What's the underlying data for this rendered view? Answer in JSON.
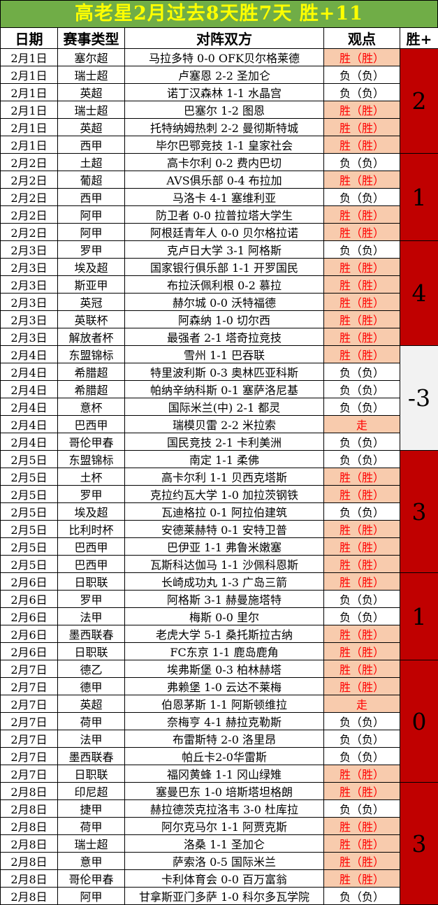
{
  "title": "高老星2月过去8天胜7天 胜+11",
  "columns": [
    "日期",
    "赛事类型",
    "对阵双方",
    "观点",
    "胜+"
  ],
  "colors": {
    "title_bg": "#70AD47",
    "title_text": "#FFFF00",
    "highlight_bg": "#F8CBAD",
    "highlight_text": "#FF0000",
    "score_red_bg": "#C00000",
    "score_gray_bg": "#F2F2F2"
  },
  "groups": [
    {
      "date": "2月1日",
      "score": "2",
      "score_style": "red",
      "rows": [
        {
          "league": "塞尔超",
          "match": "马拉多特 0-0 OFK贝尔格莱德",
          "opinion": "胜（胜）",
          "hl": true
        },
        {
          "league": "瑞士超",
          "match": "卢塞恩 2-2 圣加仑",
          "opinion": "负（负）",
          "hl": false
        },
        {
          "league": "英超",
          "match": "诺丁汉森林 1-1 水晶宫",
          "opinion": "负（负）",
          "hl": false
        },
        {
          "league": "瑞士超",
          "match": "巴塞尔 1-2 图恩",
          "opinion": "胜（胜）",
          "hl": true
        },
        {
          "league": "英超",
          "match": "托特纳姆热刺 2-2 曼彻斯特城",
          "opinion": "胜（胜）",
          "hl": true
        },
        {
          "league": "西甲",
          "match": "毕尔巴鄂竞技 1-1 皇家社会",
          "opinion": "胜（胜）",
          "hl": true
        }
      ]
    },
    {
      "date": "2月2日",
      "score": "1",
      "score_style": "red",
      "rows": [
        {
          "league": "土超",
          "match": "高卡尔利 0-2 费内巴切",
          "opinion": "负（负）",
          "hl": false
        },
        {
          "league": "葡超",
          "match": "AVS俱乐部 0-4 布拉加",
          "opinion": "胜（胜）",
          "hl": true
        },
        {
          "league": "西甲",
          "match": "马洛卡 4-1 塞维利亚",
          "opinion": "负（负）",
          "hl": false
        },
        {
          "league": "阿甲",
          "match": "防卫者 0-0 拉普拉塔大学生",
          "opinion": "胜（胜）",
          "hl": true
        },
        {
          "league": "阿甲",
          "match": "阿根廷青年人 0-0 贝尔格拉诺",
          "opinion": "胜（胜）",
          "hl": true
        }
      ]
    },
    {
      "date": "2月3日",
      "score": "4",
      "score_style": "red",
      "rows": [
        {
          "league": "罗甲",
          "match": "克卢日大学 3-1 阿格斯",
          "opinion": "负（负）",
          "hl": false
        },
        {
          "league": "埃及超",
          "match": "国家银行俱乐部 1-1 开罗国民",
          "opinion": "胜（胜）",
          "hl": true
        },
        {
          "league": "斯亚甲",
          "match": "布拉沃佩利根 0-2 慕拉",
          "opinion": "胜（胜）",
          "hl": true
        },
        {
          "league": "英冠",
          "match": "赫尔城 0-0 沃特福德",
          "opinion": "胜（胜）",
          "hl": true
        },
        {
          "league": "英联杯",
          "match": "阿森纳 1-0 切尔西",
          "opinion": "胜（胜）",
          "hl": true
        },
        {
          "league": "解放者杯",
          "match": "最强者 2-1 塔奇拉竞技",
          "opinion": "胜（胜）",
          "hl": true
        }
      ]
    },
    {
      "date": "2月4日",
      "score": "-3",
      "score_style": "gray",
      "rows": [
        {
          "league": "东盟锦标",
          "match": "雪州 1-1 巴吞联",
          "opinion": "胜（胜）",
          "hl": true
        },
        {
          "league": "希腊超",
          "match": "特里波利斯 0-3 奥林匹亚科斯",
          "opinion": "负（负）",
          "hl": false
        },
        {
          "league": "希腊超",
          "match": "帕纳辛纳科斯 0-1 塞萨洛尼基",
          "opinion": "负（负）",
          "hl": false
        },
        {
          "league": "意杯",
          "match": "国际米兰(中) 2-1 都灵",
          "opinion": "负（负）",
          "hl": false
        },
        {
          "league": "巴西甲",
          "match": "瑞模贝雷 2-2 米拉索",
          "opinion": "走",
          "hl": true
        },
        {
          "league": "哥伦甲春",
          "match": "国民竞技 2-1 卡利美洲",
          "opinion": "负（负）",
          "hl": false
        }
      ]
    },
    {
      "date": "2月5日",
      "score": "3",
      "score_style": "red",
      "rows": [
        {
          "league": "东盟锦标",
          "match": "南定 1-1 柔佛",
          "opinion": "负（负）",
          "hl": false
        },
        {
          "league": "土杯",
          "match": "高卡尔利 1-1 贝西克塔斯",
          "opinion": "胜（胜）",
          "hl": true
        },
        {
          "league": "罗甲",
          "match": "克拉约瓦大学 1-0 加拉茨钢铁",
          "opinion": "胜（胜）",
          "hl": true
        },
        {
          "league": "埃及超",
          "match": "瓦迪格拉 0-1 阿拉伯建筑",
          "opinion": "负（负）",
          "hl": false
        },
        {
          "league": "比利时杯",
          "match": "安德莱赫特 0-1 安特卫普",
          "opinion": "胜（胜）",
          "hl": true
        },
        {
          "league": "巴西甲",
          "match": "巴伊亚 1-1 弗鲁米嫩塞",
          "opinion": "胜（胜）",
          "hl": true
        },
        {
          "league": "巴西甲",
          "match": "瓦斯科达伽马 1-1 沙佩科恩斯",
          "opinion": "胜（胜）",
          "hl": true
        }
      ]
    },
    {
      "date": "2月6日",
      "score": "1",
      "score_style": "red",
      "rows": [
        {
          "league": "日职联",
          "match": "长崎成功丸 1-3 广岛三箭",
          "opinion": "胜（胜）",
          "hl": true
        },
        {
          "league": "罗甲",
          "match": "阿格斯 3-1 赫曼施塔特",
          "opinion": "负（负）",
          "hl": false
        },
        {
          "league": "法甲",
          "match": "梅斯 0-0 里尔",
          "opinion": "负（负）",
          "hl": false
        },
        {
          "league": "墨西联春",
          "match": "老虎大学 5-1 桑托斯拉古纳",
          "opinion": "胜（胜）",
          "hl": true
        },
        {
          "league": "日职联",
          "match": "FC东京 1-1 鹿岛鹿角",
          "opinion": "胜（胜）",
          "hl": true
        }
      ]
    },
    {
      "date": "2月7日",
      "score": "0",
      "score_style": "red",
      "rows": [
        {
          "league": "德乙",
          "match": "埃弗斯堡 0-3 柏林赫塔",
          "opinion": "胜（胜）",
          "hl": true
        },
        {
          "league": "德甲",
          "match": "弗赖堡 1-0 云达不莱梅",
          "opinion": "胜（胜）",
          "hl": true
        },
        {
          "league": "英超",
          "match": "伯恩茅斯 1-1 阿斯顿维拉",
          "opinion": "走",
          "hl": true
        },
        {
          "league": "荷甲",
          "match": "奈梅亨 4-1 赫拉克勒斯",
          "opinion": "负（负）",
          "hl": false
        },
        {
          "league": "法甲",
          "match": "布雷斯特 2-0 洛里昂",
          "opinion": "负（负）",
          "hl": false
        },
        {
          "league": "墨西联春",
          "match": "帕丘卡2-0华雷斯",
          "opinion": "负（负）",
          "hl": false
        },
        {
          "league": "日职联",
          "match": "福冈黄蜂 1-1 冈山绿雉",
          "opinion": "胜（胜）",
          "hl": true
        }
      ]
    },
    {
      "date": "2月8日",
      "score": "3",
      "score_style": "red",
      "rows": [
        {
          "league": "印尼超",
          "match": "塞曼巴东 1-0 培斯塔坦格朗",
          "opinion": "胜（胜）",
          "hl": true
        },
        {
          "league": "捷甲",
          "match": "赫拉德茨克拉洛韦 3-0 杜库拉",
          "opinion": "负（负）",
          "hl": false
        },
        {
          "league": "荷甲",
          "match": "阿尔克马尔 1-1 阿贾克斯",
          "opinion": "胜（胜）",
          "hl": true
        },
        {
          "league": "瑞士超",
          "match": "洛桑 1-1 圣加仑",
          "opinion": "胜（胜）",
          "hl": true
        },
        {
          "league": "意甲",
          "match": "萨索洛 0-5 国际米兰",
          "opinion": "胜（胜）",
          "hl": true
        },
        {
          "league": "哥伦甲春",
          "match": "卡利体育会 0-0 百万富翁",
          "opinion": "胜（胜）",
          "hl": true
        },
        {
          "league": "阿甲",
          "match": "甘拿斯亚门多萨 1-0 科尔多瓦学院",
          "opinion": "负（负）",
          "hl": false
        }
      ]
    }
  ]
}
